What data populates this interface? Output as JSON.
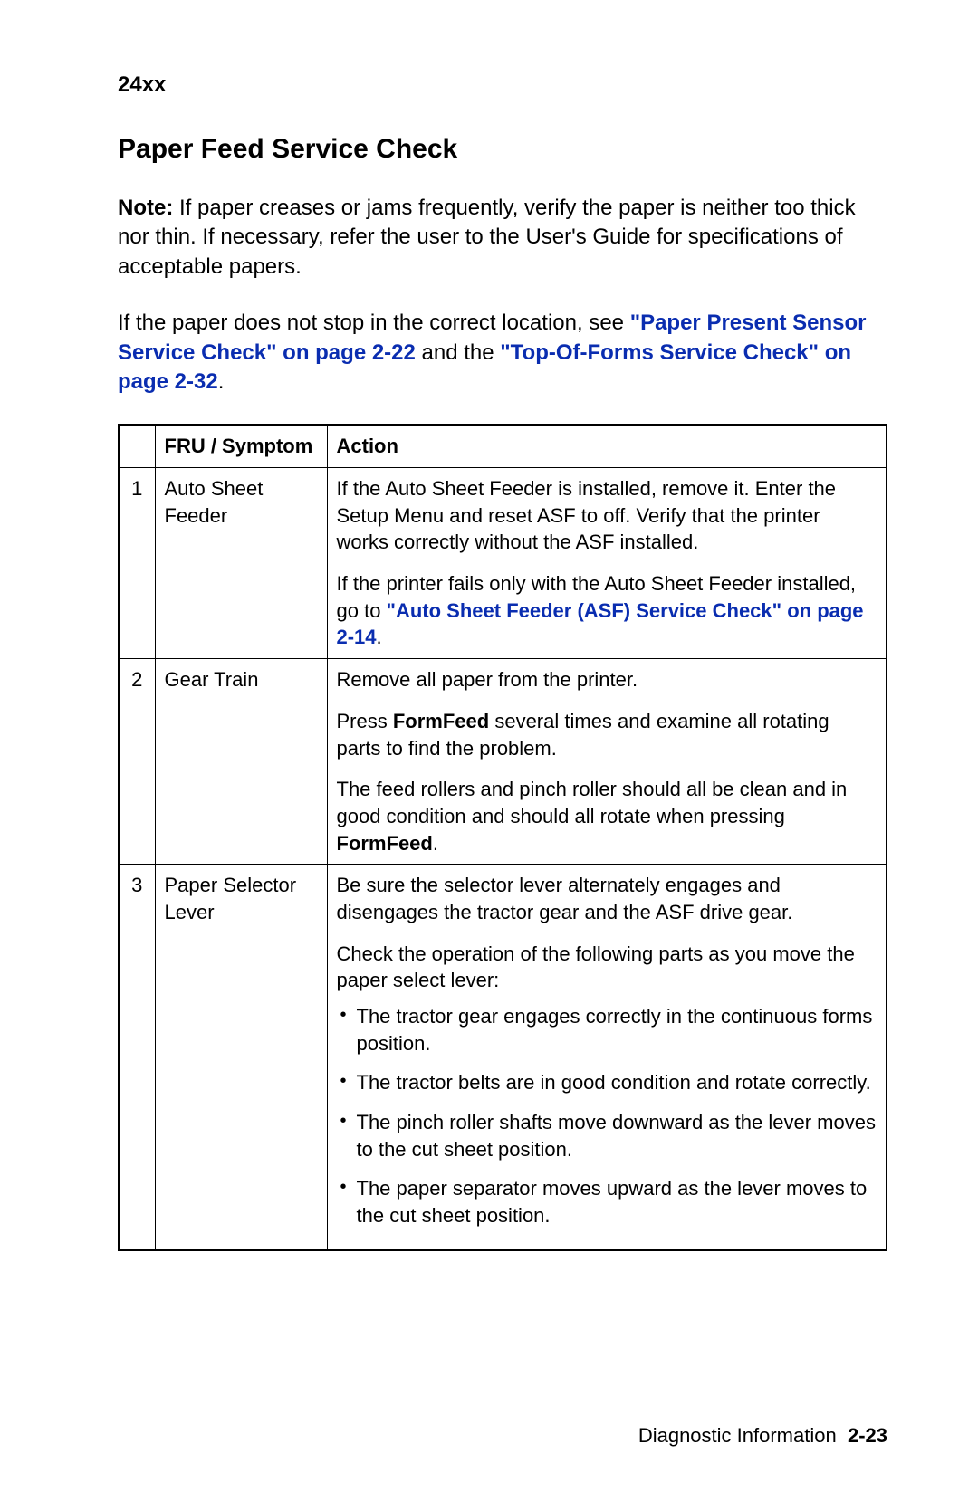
{
  "header": {
    "model": "24xx"
  },
  "title": "Paper Feed Service Check",
  "para1": {
    "note_label": "Note:",
    "text": "  If paper creases or jams frequently, verify the paper is neither too thick nor thin. If necessary, refer the user to the User's Guide for specifications of acceptable papers."
  },
  "para2": {
    "lead": "If the paper does not stop in the correct location, see ",
    "link1": "\"Paper Present Sensor Service Check\" on page 2-22",
    "mid": " and the ",
    "link2": "\"Top-Of-Forms Service Check\" on page 2-32",
    "end": "."
  },
  "table": {
    "headers": {
      "col2": "FRU / Symptom",
      "col3": "Action"
    },
    "rows": [
      {
        "num": "1",
        "symptom": "Auto Sheet Feeder",
        "actions": [
          {
            "text": "If the Auto Sheet Feeder is installed, remove it. Enter the Setup Menu and reset ASF to off. Verify that the printer works correctly without the ASF installed."
          },
          {
            "pre": "If the printer fails only with the Auto Sheet Feeder installed, go to ",
            "link": "\"Auto Sheet Feeder (ASF) Service Check\" on page 2-14",
            "post": "."
          }
        ]
      },
      {
        "num": "2",
        "symptom": "Gear Train",
        "actions": [
          {
            "text": "Remove all paper from the printer."
          },
          {
            "pre": "Press ",
            "bold1": "FormFeed",
            "mid": " several times and examine all rotating parts to find the problem."
          },
          {
            "pre": "The feed rollers and pinch roller should all be clean and in good condition and should all rotate when pressing ",
            "bold1": "FormFeed",
            "post": "."
          }
        ]
      },
      {
        "num": "3",
        "symptom": "Paper Selector Lever",
        "actions": [
          {
            "text": "Be sure the selector lever alternately engages and disengages the tractor gear and the ASF drive gear."
          },
          {
            "text": "Check the operation of the following parts as you move the paper select lever:"
          }
        ],
        "bullets": [
          "The tractor gear engages correctly in the continuous forms position.",
          "The tractor belts are in good condition and rotate correctly.",
          "The pinch roller shafts move downward as the lever moves to the cut sheet position.",
          "The paper separator moves upward as the lever moves to the cut sheet position."
        ]
      }
    ]
  },
  "footer": {
    "label": "Diagnostic Information",
    "page": "2-23"
  },
  "colors": {
    "link": "#0a2db0",
    "text": "#000000",
    "background": "#ffffff"
  }
}
